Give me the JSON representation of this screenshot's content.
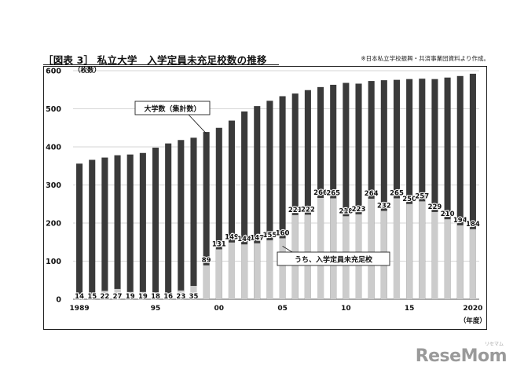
{
  "header": {
    "title": "［図表 3］ 私立大学　入学定員未充足校数の推移",
    "source": "※日本私立学校振興・共済事業団資料より作成。"
  },
  "logo": {
    "text": "ReseMom",
    "kana": "リセマム"
  },
  "chart_data": {
    "type": "bar",
    "title": "［図表 3］ 私立大学　入学定員未充足校数の推移",
    "ylabel": "（枚数）",
    "xlabel": "（年度）",
    "ylim": [
      0,
      600
    ],
    "yticks": [
      0,
      100,
      200,
      300,
      400,
      500,
      600
    ],
    "grid": true,
    "categories": [
      "1989",
      "1990",
      "1991",
      "1992",
      "1993",
      "1994",
      "1995",
      "1996",
      "1997",
      "1998",
      "1999",
      "2000",
      "2001",
      "2002",
      "2003",
      "2004",
      "2005",
      "2006",
      "2007",
      "2008",
      "2009",
      "2010",
      "2011",
      "2012",
      "2013",
      "2014",
      "2015",
      "2016",
      "2017",
      "2018",
      "2019",
      "2020"
    ],
    "x_tick_labels": [
      {
        "index": 0,
        "label": "1989"
      },
      {
        "index": 6,
        "label": "95"
      },
      {
        "index": 11,
        "label": "00"
      },
      {
        "index": 16,
        "label": "05"
      },
      {
        "index": 21,
        "label": "10"
      },
      {
        "index": 26,
        "label": "15"
      },
      {
        "index": 31,
        "label": "2020"
      }
    ],
    "series": [
      {
        "name": "大学数（集計数）",
        "color": "#3a3a3a",
        "values": [
          356,
          366,
          372,
          378,
          380,
          384,
          398,
          409,
          418,
          424,
          439,
          450,
          469,
          493,
          507,
          521,
          533,
          540,
          549,
          557,
          563,
          568,
          566,
          573,
          575,
          576,
          578,
          579,
          578,
          582,
          586,
          592
        ]
      },
      {
        "name": "うち、入学定員未充足校",
        "color": "#cccccc",
        "values": [
          14,
          15,
          22,
          27,
          19,
          19,
          18,
          16,
          23,
          35,
          89,
          131,
          149,
          144,
          147,
          155,
          160,
          221,
          222,
          266,
          265,
          218,
          223,
          264,
          232,
          265,
          250,
          257,
          229,
          210,
          194,
          184
        ]
      }
    ],
    "annotations": [
      {
        "text": "大学数（集計数）",
        "target": "大学数（集計数）"
      },
      {
        "text": "うち、入学定員未充足校",
        "target": "うち、入学定員未充足校"
      }
    ]
  }
}
